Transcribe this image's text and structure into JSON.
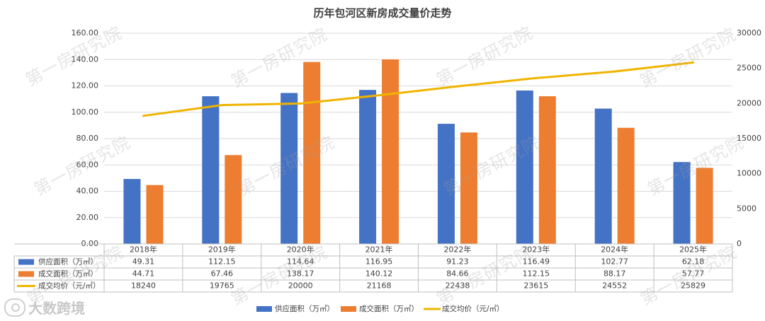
{
  "chart_data": {
    "type": "bar",
    "title": "历年包河区新房成交量价走势",
    "categories": [
      "2018年",
      "2019年",
      "2020年",
      "2021年",
      "2022年",
      "2023年",
      "2024年",
      "2025年"
    ],
    "series": [
      {
        "name": "供应面积（万㎡）",
        "kind": "bar",
        "axis": "left",
        "color": "#4472c4",
        "values": [
          49.31,
          112.15,
          114.64,
          116.95,
          91.23,
          116.49,
          102.77,
          62.18
        ],
        "labels": [
          "49.31",
          "112.15",
          "114.64",
          "116.95",
          "91.23",
          "116.49",
          "102.77",
          "62.18"
        ]
      },
      {
        "name": "成交面积（万㎡）",
        "kind": "bar",
        "axis": "left",
        "color": "#ed7d31",
        "values": [
          44.71,
          67.46,
          138.17,
          140.12,
          84.66,
          112.15,
          88.17,
          57.77
        ],
        "labels": [
          "44.71",
          "67.46",
          "138.17",
          "140.12",
          "84.66",
          "112.15",
          "88.17",
          "57.77"
        ]
      },
      {
        "name": "成交均价（元/㎡）",
        "kind": "line",
        "axis": "right",
        "color": "#f0b400",
        "values": [
          18240,
          19765,
          20000,
          21168,
          22438,
          23615,
          24552,
          25829
        ],
        "labels": [
          "18240",
          "19765",
          "20000",
          "21168",
          "22438",
          "23615",
          "24552",
          "25829"
        ]
      }
    ],
    "y_left": {
      "min": 0,
      "max": 160,
      "step": 20,
      "ticks": [
        "0.00",
        "20.00",
        "40.00",
        "60.00",
        "80.00",
        "100.00",
        "120.00",
        "140.00",
        "160.00"
      ]
    },
    "y_right": {
      "min": 0,
      "max": 30000,
      "step": 5000,
      "ticks": [
        "0",
        "5000",
        "10000",
        "15000",
        "20000",
        "25000",
        "30000"
      ]
    },
    "grid": true,
    "legend": "bottom",
    "data_table": true
  },
  "watermark": "第一房研究院",
  "brand": "大数跨境"
}
